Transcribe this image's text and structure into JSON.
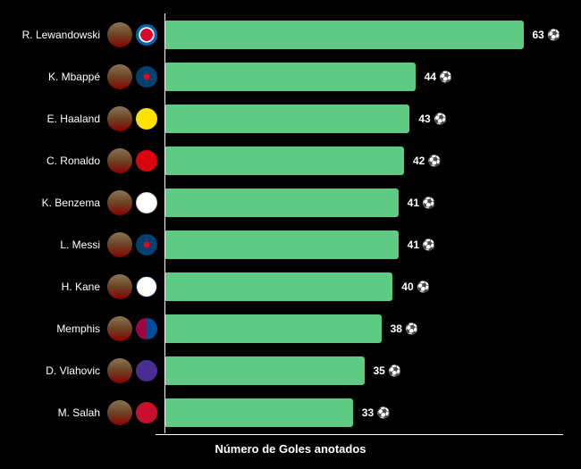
{
  "chart": {
    "type": "horizontal-bar",
    "background_color": "#000000",
    "bar_color": "#5eca83",
    "text_color": "#ffffff",
    "x_label": "Número de Goles anotados",
    "max_value": 70,
    "value_suffix": " ⚽",
    "players": [
      {
        "name": "R. Lewandowski",
        "value": 63,
        "club_class": "club-bayern"
      },
      {
        "name": "K. Mbappé",
        "value": 44,
        "club_class": "club-psg"
      },
      {
        "name": "E. Haaland",
        "value": 43,
        "club_class": "club-bvb"
      },
      {
        "name": "C. Ronaldo",
        "value": 42,
        "club_class": "club-mutd"
      },
      {
        "name": "K. Benzema",
        "value": 41,
        "club_class": "club-real"
      },
      {
        "name": "L. Messi",
        "value": 41,
        "club_class": "club-psg"
      },
      {
        "name": "H. Kane",
        "value": 40,
        "club_class": "club-spurs"
      },
      {
        "name": "Memphis",
        "value": 38,
        "club_class": "club-barca"
      },
      {
        "name": "D. Vlahovic",
        "value": 35,
        "club_class": "club-fiorentina"
      },
      {
        "name": "M. Salah",
        "value": 33,
        "club_class": "club-liverpool"
      }
    ]
  }
}
